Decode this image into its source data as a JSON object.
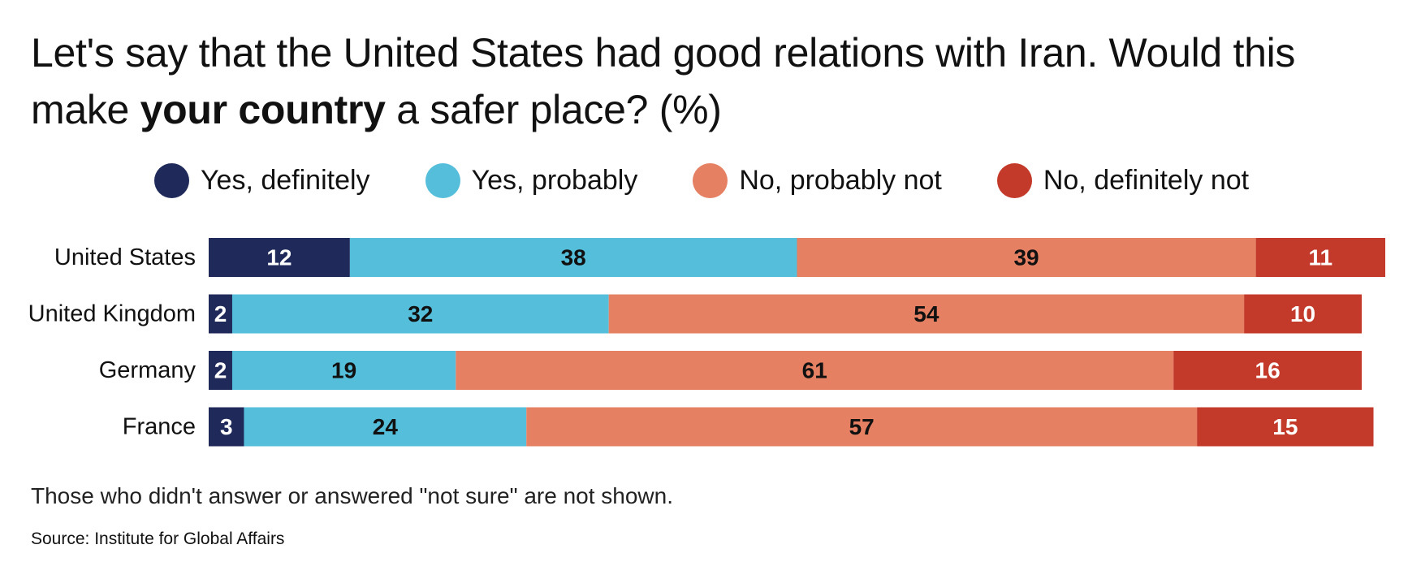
{
  "title": {
    "before": "Let's say that the United States had good relations with Iran. Would this make ",
    "bold": "your country",
    "after": " a safer place? (%)"
  },
  "note": "Those who didn't answer or answered \"not sure\" are not shown.",
  "source": "Source: Institute for Global Affairs",
  "chart_data": {
    "type": "bar",
    "orientation": "horizontal",
    "stacked": true,
    "categories": [
      "United States",
      "United Kingdom",
      "Germany",
      "France"
    ],
    "series": [
      {
        "name": "Yes, definitely",
        "color": "#1f2a5a",
        "label_color": "#ffffff",
        "values": [
          12,
          2,
          2,
          3
        ]
      },
      {
        "name": "Yes, probably",
        "color": "#55bedb",
        "label_color": "#111111",
        "values": [
          38,
          32,
          19,
          24
        ]
      },
      {
        "name": "No, probably not",
        "color": "#e58063",
        "label_color": "#111111",
        "values": [
          39,
          54,
          61,
          57
        ]
      },
      {
        "name": "No, definitely not",
        "color": "#c43a2a",
        "label_color": "#ffffff",
        "values": [
          11,
          10,
          16,
          15
        ]
      }
    ],
    "xlim": [
      0,
      100
    ],
    "grid": false,
    "legend_position": "top"
  }
}
